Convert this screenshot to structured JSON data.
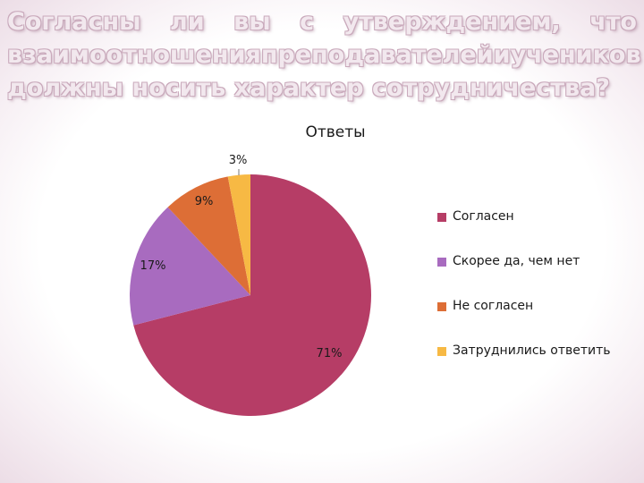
{
  "slide": {
    "title_lines": [
      [
        "Согласны",
        "ли",
        "вы",
        "с",
        "утверждением,",
        "что"
      ],
      [
        "взаимоотношения",
        "преподавателей",
        "и",
        "учеников"
      ],
      [
        "должны",
        "носить",
        "характер",
        "сотрудничества?"
      ]
    ]
  },
  "chart_data": {
    "type": "pie",
    "title": "Ответы",
    "slices": [
      {
        "name": "Согласен",
        "value": 71,
        "label": "71%",
        "color": "#b63d66"
      },
      {
        "name": "Скорее да, чем нет",
        "value": 17,
        "label": "17%",
        "color": "#a86bbf"
      },
      {
        "name": "Не согласен",
        "value": 9,
        "label": "9%",
        "color": "#dd6e36"
      },
      {
        "name": "Затруднились ответить",
        "value": 3,
        "label": "3%",
        "color": "#f7b944"
      }
    ],
    "legend_position": "right"
  }
}
